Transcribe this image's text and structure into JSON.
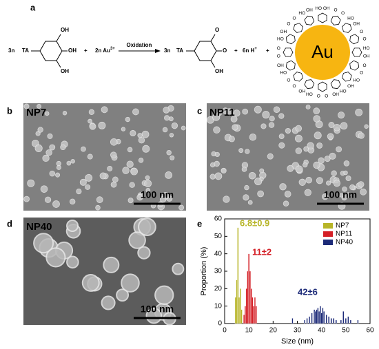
{
  "panel_labels": [
    "a",
    "b",
    "c",
    "d",
    "e"
  ],
  "scheme": {
    "left": {
      "coef": "3n",
      "group": "TA",
      "substituents": [
        "OH",
        "OH",
        "OH"
      ]
    },
    "plus1": "+",
    "reagent": "2n Au",
    "reagent_charge": "3+",
    "arrow_label": "Oxidation",
    "right": {
      "coef": "3n",
      "group": "TA",
      "substituents": [
        "O",
        "O",
        "OH"
      ]
    },
    "plus2": "+",
    "proton": "6n H",
    "proton_charge": "+",
    "plus3": "+",
    "nanoparticle": {
      "core": "Au",
      "ligands": [
        [
          "HO",
          "OH"
        ],
        [
          "O",
          "O"
        ],
        [
          "HO",
          "OH"
        ],
        [
          "O",
          "O"
        ],
        [
          "HO",
          "OH"
        ],
        [
          "O",
          "O"
        ],
        [
          "HO",
          "OH"
        ],
        [
          "HO",
          "OH"
        ],
        [
          "O",
          "O"
        ],
        [
          "HO",
          "OH"
        ],
        [
          "O",
          "O"
        ],
        [
          "HO",
          "OH"
        ],
        [
          "O",
          "O"
        ],
        [
          "HO",
          "OH"
        ],
        [
          "O",
          "O"
        ],
        [
          "HO",
          "OH"
        ]
      ]
    }
  },
  "images": [
    {
      "label": "NP7",
      "scale": "100 nm"
    },
    {
      "label": "NP11",
      "scale": "100 nm"
    },
    {
      "label": "NP40",
      "scale": "100 nm"
    }
  ],
  "chart_data": {
    "type": "bar",
    "x_label": "Size (nm)",
    "y_label": "Proportion (%)",
    "xlim": [
      0,
      60
    ],
    "xticks": [
      0,
      10,
      20,
      30,
      40,
      50,
      60
    ],
    "ylim": [
      0,
      60
    ],
    "yticks": [
      0,
      10,
      20,
      30,
      40,
      50,
      60
    ],
    "bar_width": 0.5,
    "legend": "upper right",
    "series": [
      {
        "name": "NP7",
        "color": "#b7b528",
        "x": [
          4.5,
          5,
          5.5,
          6,
          6.5,
          7
        ],
        "values": [
          15,
          25,
          55,
          15,
          20,
          8
        ]
      },
      {
        "name": "NP11",
        "color": "#d41f26",
        "x": [
          8,
          8.5,
          9,
          9.5,
          10,
          10.5,
          11,
          11.5,
          12,
          12.5,
          13
        ],
        "values": [
          5,
          10,
          20,
          30,
          40,
          30,
          20,
          15,
          10,
          15,
          10
        ]
      },
      {
        "name": "NP40",
        "color": "#1c2a78",
        "x": [
          28,
          33,
          34,
          35,
          36,
          37,
          37.5,
          38,
          38.5,
          39,
          39.5,
          40,
          40.5,
          41,
          42,
          43,
          44,
          45,
          46,
          48,
          49,
          50,
          51,
          52,
          55
        ],
        "values": [
          3,
          2,
          3,
          4,
          6,
          8,
          7,
          8,
          9,
          7,
          10,
          6,
          9,
          7,
          5,
          4,
          3,
          3,
          2,
          2,
          7,
          3,
          4,
          2,
          2
        ]
      }
    ],
    "annotations": [
      {
        "text": "6.8±0.9",
        "color": "#b7b528"
      },
      {
        "text": "11±2",
        "color": "#d41f26"
      },
      {
        "text": "42±6",
        "color": "#1c2a78"
      }
    ]
  }
}
